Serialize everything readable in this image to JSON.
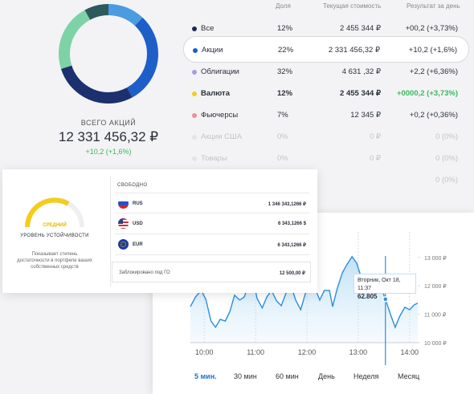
{
  "portfolio": {
    "donut": [
      {
        "color": "#4a9be0",
        "value": 12
      },
      {
        "color": "#1e5ec8",
        "value": 30
      },
      {
        "color": "#1c2f6e",
        "value": 28
      },
      {
        "color": "#7ed3a6",
        "value": 22
      },
      {
        "color": "#2e5a5e",
        "value": 8
      }
    ],
    "total_label": "ВСЕГО АКЦИЙ",
    "total_value": "12 331 456,32 ₽",
    "total_change": "+10,2 (+1,6%)"
  },
  "table": {
    "headers": [
      "Доля",
      "Текущая стоимость",
      "Результат за день"
    ],
    "rows": [
      {
        "dot": "#1c2a52",
        "name": "Все",
        "share": "12%",
        "value": "2 455 344 ₽",
        "result": "+00,2 (+3,73%)"
      },
      {
        "dot": "#1e5ec8",
        "name": "Акции",
        "share": "22%",
        "value": "2 331 456,32 ₽",
        "result": "+10,2 (+1,6%)"
      },
      {
        "dot": "#a99be0",
        "name": "Облигации",
        "share": "32%",
        "value": "4 631 ,32 ₽",
        "result": "+2,2 (+6,36%)"
      },
      {
        "dot": "#f5cc1a",
        "name": "Валюта",
        "share": "12%",
        "value": "2 455 344 ₽",
        "result": "+0000,2 (+3,73%)"
      },
      {
        "dot": "#f08c98",
        "name": "Фьючерсы",
        "share": "7%",
        "value": "12 345 ₽",
        "result": "+0,2 (+0,36%)"
      },
      {
        "dot": "#e4e4e4",
        "name": "Акции США",
        "share": "0%",
        "value": "0 ₽",
        "result": "0 (0%)"
      },
      {
        "dot": "#e4e4e4",
        "name": "Товары",
        "share": "0%",
        "value": "0 ₽",
        "result": "0 (0%)"
      },
      {
        "result": "0 (0%)"
      }
    ]
  },
  "stability": {
    "level": "СРЕДНИЙ",
    "caption": "УРОВЕНЬ УСТОЙЧИВОСТИ",
    "description": [
      "Показывает степень",
      "достаточности в портфеле ваших",
      "собственных средств"
    ]
  },
  "free": {
    "title": "СВОБОДНО",
    "accounts": [
      {
        "currency": "RUS",
        "amount": "1 346 343,1266 ₽"
      },
      {
        "currency": "USD",
        "amount": "6 343,1266 $"
      },
      {
        "currency": "EUR",
        "amount": "6 343,1266 ₽"
      }
    ],
    "blocked": {
      "label": "Заблокировано под ГО",
      "amount": "12 500,00 ₽"
    }
  },
  "price_chart": {
    "type": "line",
    "color": "#2a8ee0",
    "x": [
      9.73,
      9.83,
      9.94,
      10.03,
      10.13,
      10.22,
      10.31,
      10.41,
      10.5,
      10.59,
      10.69,
      10.78,
      10.88,
      10.94,
      11.03,
      11.13,
      11.22,
      11.31,
      11.41,
      11.5,
      11.59,
      11.69,
      11.78,
      11.88,
      11.97,
      12.06,
      12.16,
      12.25,
      12.34,
      12.44,
      12.5,
      12.59,
      12.69,
      12.78,
      12.88,
      12.97,
      13.06,
      13.16,
      13.25,
      13.34,
      13.44,
      13.53,
      13.63,
      13.72,
      13.81,
      13.91,
      14.0,
      14.09,
      14.16
    ],
    "values": [
      11270,
      11610,
      11840,
      11530,
      10760,
      10540,
      10820,
      10760,
      11100,
      11670,
      11500,
      11610,
      12180,
      12320,
      11560,
      11220,
      11610,
      11840,
      11470,
      11300,
      11730,
      12010,
      11500,
      11160,
      11730,
      12410,
      11900,
      11500,
      11840,
      11840,
      11270,
      11900,
      12460,
      12750,
      13030,
      12800,
      12290,
      11840,
      11780,
      11900,
      11950,
      11530,
      10990,
      10540,
      10930,
      11250,
      11160,
      11330,
      11390
    ],
    "xlim": [
      9.73,
      14.16
    ],
    "ylim": [
      10000,
      13900
    ],
    "xticks": [
      {
        "value": 10,
        "label": "10:00"
      },
      {
        "value": 11,
        "label": "11:00"
      },
      {
        "value": 12,
        "label": "12:00"
      },
      {
        "value": 13,
        "label": "13:00"
      },
      {
        "value": 14,
        "label": "14:00"
      }
    ],
    "yticks": [
      {
        "value": 10000,
        "label": "10 000 ₽"
      },
      {
        "value": 11000,
        "label": "11 000 ₽"
      },
      {
        "value": 12000,
        "label": "12 000 ₽"
      },
      {
        "value": 13000,
        "label": "13 000 ₽"
      }
    ],
    "cursor": {
      "x": 13.53,
      "value": 11530
    },
    "tooltip": {
      "date": "Вторник, Окт 18, 11:37",
      "value": "62.805"
    },
    "periods": [
      "5 мин.",
      "30 мин",
      "60 мин",
      "День",
      "Неделя",
      "Месяц"
    ]
  }
}
